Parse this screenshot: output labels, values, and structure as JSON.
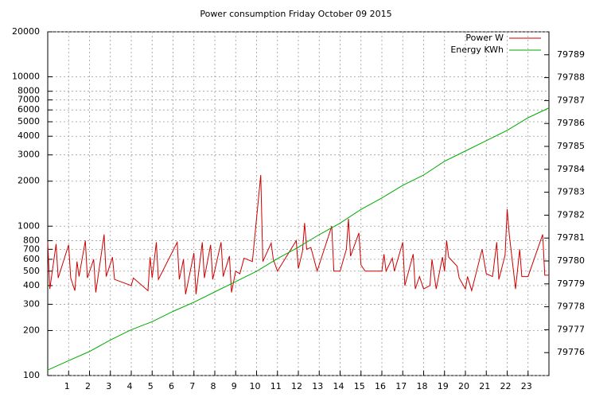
{
  "chart_data": {
    "type": "line",
    "title": "Power consumption Friday October 09 2015",
    "log_y": true,
    "grid": true,
    "legend": "top-right",
    "xlim": [
      0,
      24
    ],
    "xticks": [
      1,
      2,
      3,
      4,
      5,
      6,
      7,
      8,
      9,
      10,
      11,
      12,
      13,
      14,
      15,
      16,
      17,
      18,
      19,
      20,
      21,
      22,
      23
    ],
    "ylim": [
      100,
      20000
    ],
    "yticks": [
      100,
      200,
      300,
      400,
      500,
      600,
      700,
      800,
      1000,
      2000,
      3000,
      4000,
      5000,
      6000,
      7000,
      8000,
      10000,
      20000
    ],
    "y2lim": [
      79775,
      79790
    ],
    "y2ticks": [
      79776,
      79777,
      79778,
      79779,
      79780,
      79781,
      79782,
      79783,
      79784,
      79785,
      79786,
      79787,
      79788,
      79789
    ],
    "series": [
      {
        "name": "Power W",
        "color": "#cc0000",
        "step": true,
        "x": [
          0,
          0.1,
          0.4,
          0.5,
          1.0,
          1.1,
          1.3,
          1.4,
          1.5,
          1.8,
          1.9,
          2.2,
          2.3,
          2.7,
          2.8,
          3.1,
          3.2,
          4.0,
          4.1,
          4.8,
          4.9,
          5.0,
          5.2,
          5.3,
          6.2,
          6.3,
          6.5,
          6.6,
          7.0,
          7.1,
          7.4,
          7.5,
          7.8,
          7.9,
          8.3,
          8.4,
          8.7,
          8.8,
          9.0,
          9.2,
          9.4,
          9.8,
          10.2,
          10.3,
          10.7,
          10.8,
          11.0,
          11.9,
          12.0,
          12.2,
          12.3,
          12.4,
          12.6,
          12.9,
          13.6,
          13.7,
          14.0,
          14.3,
          14.4,
          14.5,
          14.9,
          15.0,
          15.2,
          16.0,
          16.1,
          16.2,
          16.5,
          16.6,
          17.0,
          17.1,
          17.5,
          17.6,
          17.8,
          18.0,
          18.3,
          18.4,
          18.6,
          18.9,
          19.0,
          19.1,
          19.2,
          19.6,
          19.7,
          20.0,
          20.1,
          20.3,
          20.8,
          21.0,
          21.3,
          21.5,
          21.6,
          21.9,
          22.0,
          22.1,
          22.4,
          22.6,
          22.7,
          23.0,
          23.7,
          23.8,
          24
        ],
        "values": [
          780,
          380,
          760,
          450,
          750,
          450,
          370,
          580,
          460,
          800,
          450,
          600,
          360,
          880,
          460,
          620,
          440,
          400,
          450,
          370,
          620,
          450,
          780,
          440,
          780,
          440,
          600,
          350,
          660,
          350,
          780,
          450,
          750,
          440,
          780,
          460,
          630,
          360,
          500,
          480,
          610,
          580,
          2200,
          580,
          770,
          600,
          500,
          800,
          520,
          680,
          1050,
          700,
          720,
          500,
          1000,
          500,
          500,
          700,
          1120,
          630,
          900,
          550,
          500,
          500,
          650,
          500,
          610,
          500,
          780,
          400,
          650,
          380,
          460,
          380,
          400,
          600,
          380,
          620,
          500,
          800,
          620,
          540,
          450,
          380,
          460,
          370,
          700,
          480,
          460,
          780,
          440,
          640,
          1300,
          880,
          380,
          700,
          460,
          460,
          880,
          470,
          470
        ]
      },
      {
        "name": "Energy KWh",
        "color": "#00aa00",
        "axis": "y2",
        "x": [
          0,
          1,
          2,
          3,
          4,
          5,
          6,
          7,
          8,
          9,
          10,
          11,
          12,
          13,
          14,
          15,
          16,
          17,
          18,
          19,
          20,
          21,
          22,
          23,
          24
        ],
        "values": [
          79775.24,
          79775.65,
          79776.05,
          79776.55,
          79777.0,
          79777.35,
          79777.8,
          79778.2,
          79778.65,
          79779.1,
          79779.55,
          79780.1,
          79780.6,
          79781.15,
          79781.65,
          79782.25,
          79782.75,
          79783.3,
          79783.75,
          79784.35,
          79784.8,
          79785.25,
          79785.7,
          79786.25,
          79786.68
        ]
      }
    ]
  }
}
